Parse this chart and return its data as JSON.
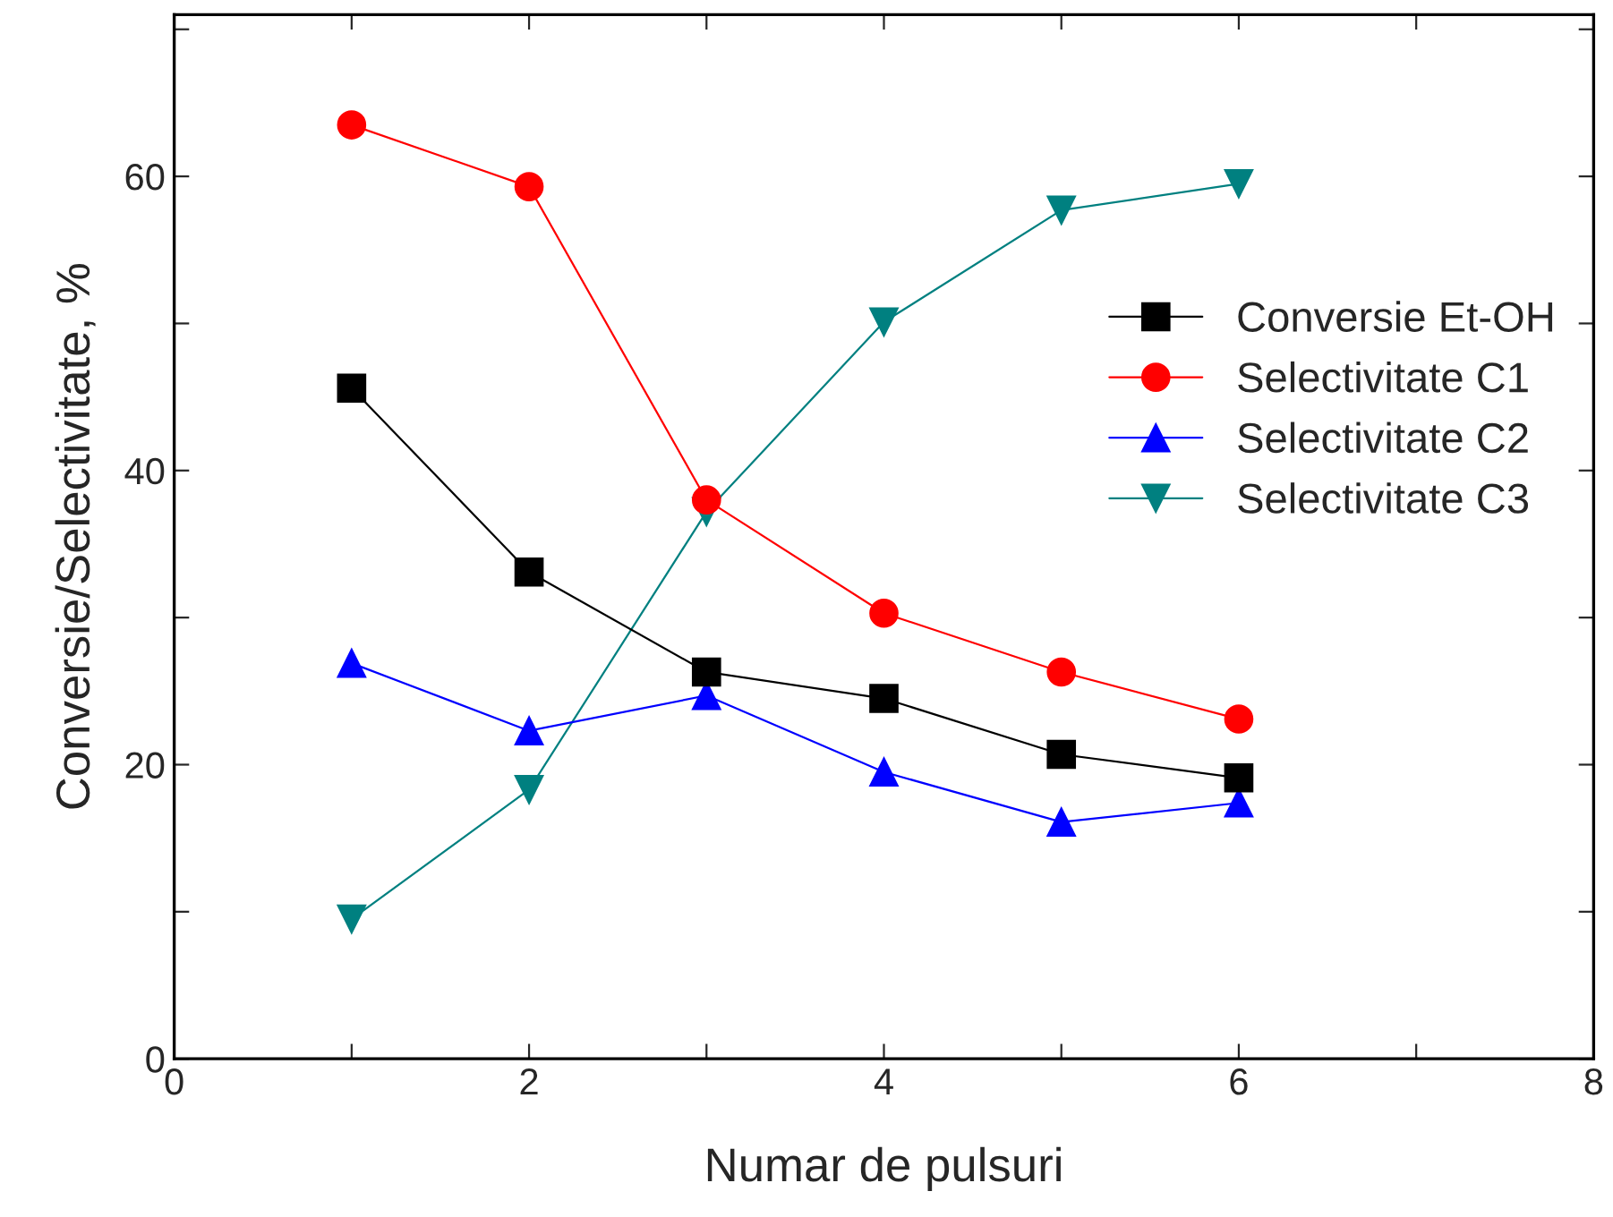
{
  "chart_data": {
    "type": "line",
    "xlabel": "Numar de pulsuri",
    "ylabel": "Conversie/Selectivitate, %",
    "x": [
      1,
      2,
      3,
      4,
      5,
      6
    ],
    "series": [
      {
        "name": "Conversie Et-OH",
        "color": "#000000",
        "marker": "square",
        "values": [
          45.6,
          33.1,
          26.3,
          24.5,
          20.7,
          19.1
        ]
      },
      {
        "name": "Selectivitate C1",
        "color": "#ff0000",
        "marker": "circle",
        "values": [
          63.5,
          59.3,
          38.0,
          30.3,
          26.3,
          23.1
        ]
      },
      {
        "name": "Selectivitate C2",
        "color": "#0000ff",
        "marker": "triangle",
        "values": [
          26.9,
          22.3,
          24.7,
          19.5,
          16.1,
          17.4
        ]
      },
      {
        "name": "Selectivitate C3",
        "color": "#008080",
        "marker": "triangle_down",
        "values": [
          9.5,
          18.3,
          37.2,
          50.1,
          57.7,
          59.5
        ]
      }
    ],
    "xlim": [
      0,
      8
    ],
    "ylim": [
      0,
      71
    ],
    "xticks": [
      0,
      {
        "value": 1,
        "label": null
      },
      2,
      {
        "value": 3,
        "label": null
      },
      4,
      {
        "value": 5,
        "label": null
      },
      6,
      {
        "value": 7,
        "label": null
      },
      8
    ],
    "yticks": [
      0,
      {
        "value": 10,
        "label": null
      },
      20,
      {
        "value": 30,
        "label": null
      },
      40,
      {
        "value": 50,
        "label": null
      },
      60,
      {
        "value": 70,
        "label": null
      }
    ],
    "grid": false,
    "legend": "right",
    "line_style": "solid"
  }
}
